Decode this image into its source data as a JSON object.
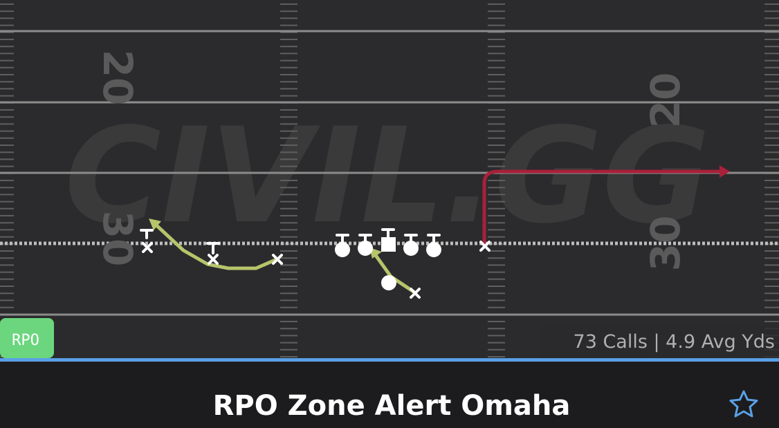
{
  "card": {
    "watermark": "CIVIL.GG",
    "yard_numbers": {
      "left_top": "20",
      "left_bottom": "30",
      "right_top": "20",
      "right_bottom": "30"
    },
    "badge": "RPO",
    "stats": "73 Calls | 4.9 Avg Yds",
    "title": "RPO Zone Alert Omaha"
  }
}
